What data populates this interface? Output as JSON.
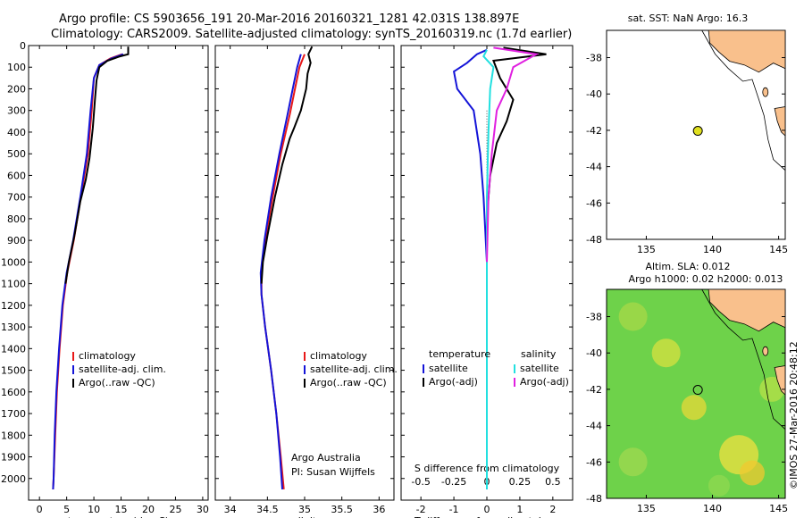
{
  "header": {
    "title_line1": "Argo profile: CS 5903656_191 20-Mar-2016 20160321_1281 42.031S 138.897E",
    "title_line2": "Climatology: CARS2009. Satellite-adjusted climatology: synTS_20160319.nc (1.7d earlier)"
  },
  "map_top": {
    "title": "sat. SST: NaN Argo: 16.3",
    "x_ticks": [
      "135",
      "140",
      "145"
    ],
    "y_ticks": [
      "-38",
      "-40",
      "-42",
      "-44",
      "-46",
      "-48"
    ],
    "xlim": [
      132,
      145.5
    ],
    "ylim": [
      -48,
      -36.5
    ],
    "argo_lon": 138.897,
    "argo_lat": -42.031,
    "marker_color": "#e0e020",
    "land_color": "#f9c08c"
  },
  "map_bottom": {
    "title_line1": "Altim. SLA: 0.012",
    "title_line2": "Argo h1000: 0.02 h2000: 0.013",
    "x_ticks": [
      "135",
      "140",
      "145"
    ],
    "y_ticks": [
      "-38",
      "-40",
      "-42",
      "-44",
      "-46",
      "-48"
    ],
    "land_color": "#f9c08c",
    "field_color": "#6ed24a"
  },
  "side_stamp": "©IMOS 27-Mar-2016 20:48:12",
  "credit": {
    "line1": "Argo Australia",
    "line2": "PI: Susan Wijffels"
  },
  "colors": {
    "climatology": "#e81818",
    "satellite": "#1414d8",
    "argo": "#000000",
    "sal_satellite": "#22e0e0",
    "sal_argo": "#e020e0"
  },
  "chart_data": [
    {
      "type": "line",
      "xlabel": "temperature (deg C)",
      "ylabel": "",
      "xlim": [
        -2,
        31
      ],
      "ylim": [
        2100,
        0
      ],
      "x_ticks": [
        "0",
        "5",
        "10",
        "15",
        "20",
        "25",
        "30"
      ],
      "y_ticks": [
        "0",
        "100",
        "200",
        "300",
        "400",
        "500",
        "600",
        "700",
        "800",
        "900",
        "1000",
        "1100",
        "1200",
        "1300",
        "1400",
        "1500",
        "1600",
        "1700",
        "1800",
        "1900",
        "2000"
      ],
      "legend": [
        "climatology",
        "satellite-adj. clim.",
        "Argo(..raw -QC)"
      ],
      "series": [
        {
          "name": "climatology",
          "color": "#e81818",
          "points": [
            [
              15.2,
              40
            ],
            [
              13,
              60
            ],
            [
              11,
              90
            ],
            [
              10,
              150
            ],
            [
              9.6,
              300
            ],
            [
              8.9,
              500
            ],
            [
              7.6,
              700
            ],
            [
              6.3,
              900
            ],
            [
              5.1,
              1050
            ],
            [
              4.3,
              1200
            ],
            [
              3.7,
              1400
            ],
            [
              3.2,
              1600
            ],
            [
              2.9,
              1800
            ],
            [
              2.6,
              2000
            ],
            [
              2.5,
              2050
            ]
          ]
        },
        {
          "name": "satellite-adj. clim.",
          "color": "#1414d8",
          "points": [
            [
              15.4,
              40
            ],
            [
              13.2,
              60
            ],
            [
              11,
              90
            ],
            [
              10,
              150
            ],
            [
              9.4,
              300
            ],
            [
              8.7,
              500
            ],
            [
              7.5,
              700
            ],
            [
              6.2,
              900
            ],
            [
              5,
              1050
            ],
            [
              4.2,
              1200
            ],
            [
              3.6,
              1400
            ],
            [
              3.1,
              1600
            ],
            [
              2.8,
              1800
            ],
            [
              2.6,
              2000
            ],
            [
              2.5,
              2050
            ]
          ]
        },
        {
          "name": "Argo(..raw -QC)",
          "color": "#000000",
          "points": [
            [
              16.3,
              5
            ],
            [
              16.3,
              40
            ],
            [
              14.8,
              50
            ],
            [
              12.5,
              70
            ],
            [
              11,
              100
            ],
            [
              10.5,
              160
            ],
            [
              10.2,
              250
            ],
            [
              9.8,
              380
            ],
            [
              9.2,
              520
            ],
            [
              8.5,
              620
            ],
            [
              7.5,
              720
            ],
            [
              6.4,
              880
            ],
            [
              5.4,
              1000
            ],
            [
              4.8,
              1100
            ]
          ]
        }
      ]
    },
    {
      "type": "line",
      "xlabel": "salinity",
      "ylabel": "",
      "xlim": [
        33.8,
        36.2
      ],
      "ylim": [
        2100,
        0
      ],
      "x_ticks": [
        "34",
        "34.5",
        "35",
        "35.5",
        "36"
      ],
      "legend": [
        "climatology",
        "satellite-adj. clim.",
        "Argo(..raw -QC)"
      ],
      "series": [
        {
          "name": "climatology",
          "color": "#e81818",
          "points": [
            [
              35.0,
              40
            ],
            [
              34.93,
              100
            ],
            [
              34.87,
              200
            ],
            [
              34.8,
              320
            ],
            [
              34.68,
              500
            ],
            [
              34.57,
              700
            ],
            [
              34.47,
              900
            ],
            [
              34.42,
              1050
            ],
            [
              34.42,
              1150
            ],
            [
              34.47,
              1300
            ],
            [
              34.55,
              1500
            ],
            [
              34.62,
              1700
            ],
            [
              34.68,
              1900
            ],
            [
              34.72,
              2050
            ]
          ]
        },
        {
          "name": "satellite-adj. clim.",
          "color": "#1414d8",
          "points": [
            [
              34.95,
              40
            ],
            [
              34.9,
              100
            ],
            [
              34.84,
              200
            ],
            [
              34.77,
              320
            ],
            [
              34.66,
              500
            ],
            [
              34.55,
              700
            ],
            [
              34.46,
              900
            ],
            [
              34.41,
              1050
            ],
            [
              34.42,
              1150
            ],
            [
              34.47,
              1300
            ],
            [
              34.55,
              1500
            ],
            [
              34.62,
              1700
            ],
            [
              34.67,
              1900
            ],
            [
              34.7,
              2050
            ]
          ]
        },
        {
          "name": "Argo(..raw -QC)",
          "color": "#000000",
          "points": [
            [
              35.1,
              5
            ],
            [
              35.05,
              40
            ],
            [
              35.08,
              80
            ],
            [
              35.04,
              130
            ],
            [
              35.02,
              200
            ],
            [
              34.95,
              300
            ],
            [
              34.86,
              380
            ],
            [
              34.8,
              430
            ],
            [
              34.7,
              550
            ],
            [
              34.6,
              700
            ],
            [
              34.5,
              880
            ],
            [
              34.44,
              1000
            ],
            [
              34.42,
              1100
            ]
          ]
        }
      ]
    },
    {
      "type": "line",
      "xlabel": "T difference from climatology",
      "x2label": "S difference from climatology",
      "ylabel": "",
      "xlim": [
        -2.6,
        2.6
      ],
      "ylim": [
        2100,
        0
      ],
      "x_ticks": [
        "-2",
        "-1",
        "0",
        "1",
        "2"
      ],
      "x2_ticks": [
        "-0.5",
        "-0.25",
        "0",
        "0.25",
        "0.5"
      ],
      "legend_left_header": "temperature",
      "legend_right_header": "salinity",
      "legend": [
        "satellite",
        "Argo(-adj)",
        "satellite",
        "Argo(-adj)"
      ],
      "series": [
        {
          "name": "satellite",
          "color": "#1414d8",
          "points": [
            [
              0,
              20
            ],
            [
              -0.3,
              40
            ],
            [
              -0.6,
              80
            ],
            [
              -1,
              120
            ],
            [
              -0.9,
              200
            ],
            [
              -0.4,
              300
            ],
            [
              -0.2,
              500
            ],
            [
              -0.1,
              700
            ],
            [
              0,
              1000
            ],
            [
              0,
              2050
            ]
          ]
        },
        {
          "name": "Argo(-adj)",
          "color": "#000000",
          "points": [
            [
              0.5,
              10
            ],
            [
              1.8,
              40
            ],
            [
              0.2,
              70
            ],
            [
              0.4,
              150
            ],
            [
              0.8,
              250
            ],
            [
              0.6,
              350
            ],
            [
              0.3,
              450
            ],
            [
              0.1,
              600
            ],
            [
              0,
              800
            ],
            [
              0,
              1000
            ],
            [
              0,
              1100
            ]
          ]
        },
        {
          "name": "satellite",
          "color": "#22e0e0",
          "points": [
            [
              0,
              20
            ],
            [
              -0.1,
              50
            ],
            [
              0.2,
              100
            ],
            [
              0.1,
              200
            ],
            [
              0.05,
              400
            ],
            [
              0,
              700
            ],
            [
              0,
              2050
            ]
          ]
        },
        {
          "name": "Argo(-adj)",
          "color": "#e020e0",
          "points": [
            [
              0.2,
              10
            ],
            [
              1.5,
              40
            ],
            [
              0.8,
              100
            ],
            [
              0.6,
              200
            ],
            [
              0.3,
              300
            ],
            [
              0.15,
              500
            ],
            [
              0.05,
              700
            ],
            [
              0,
              1000
            ]
          ]
        }
      ]
    }
  ]
}
